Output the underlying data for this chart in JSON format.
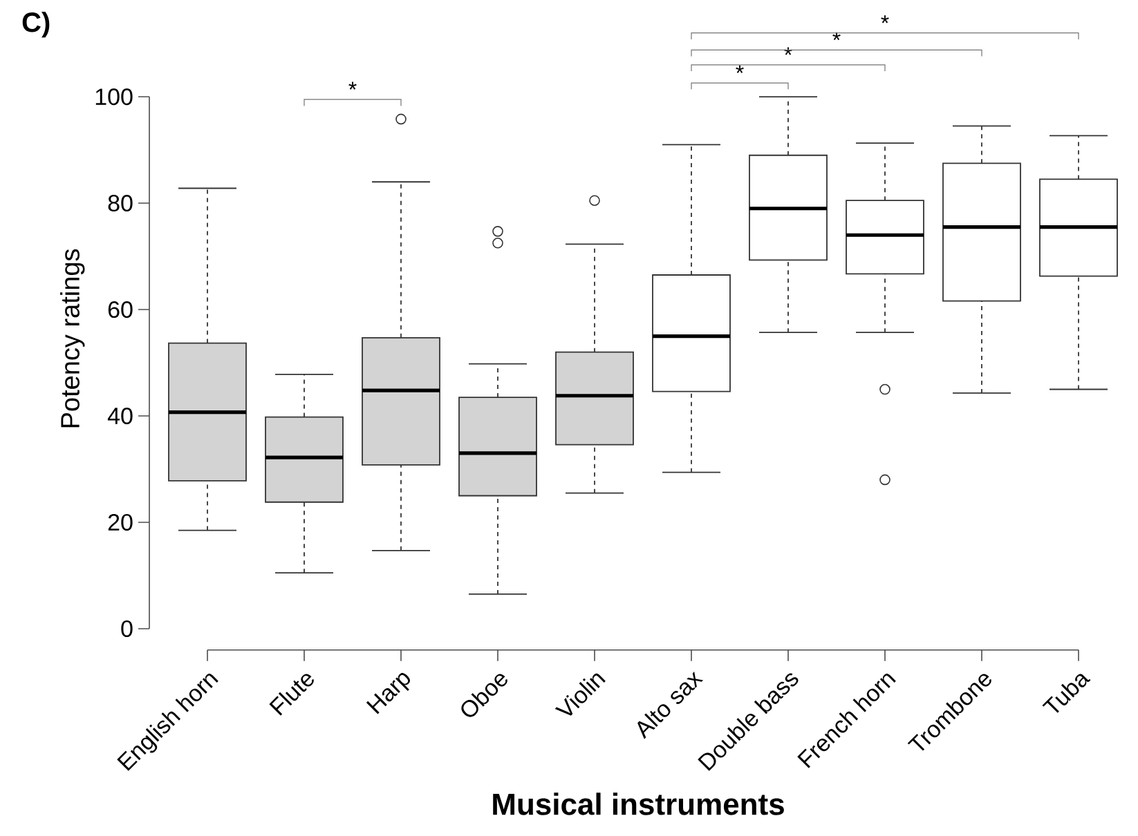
{
  "chart_data": {
    "type": "box",
    "title": "C)",
    "xlabel": "Musical instruments",
    "ylabel": "Potency ratings",
    "categories": [
      "English horn",
      "Flute",
      "Harp",
      "Oboe",
      "Violin",
      "Alto sax",
      "Double bass",
      "French horn",
      "Trombone",
      "Tuba"
    ],
    "boxes": [
      {
        "low": 18.5,
        "q1": 27.8,
        "median": 40.7,
        "q3": 53.7,
        "high": 82.8
      },
      {
        "low": 10.5,
        "q1": 23.8,
        "median": 32.2,
        "q3": 39.8,
        "high": 47.8
      },
      {
        "low": 14.7,
        "q1": 30.8,
        "median": 44.8,
        "q3": 54.7,
        "high": 84,
        "outliers": [
          95.8
        ]
      },
      {
        "low": 6.5,
        "q1": 25,
        "median": 33,
        "q3": 43.5,
        "high": 49.8,
        "outliers": [
          72.5,
          74.7
        ]
      },
      {
        "low": 25.5,
        "q1": 34.6,
        "median": 43.8,
        "q3": 52,
        "high": 72.3,
        "outliers": [
          80.5
        ]
      },
      {
        "low": 29.4,
        "q1": 44.6,
        "median": 55,
        "q3": 66.5,
        "high": 91
      },
      {
        "low": 55.7,
        "q1": 69.3,
        "median": 79,
        "q3": 89,
        "high": 100
      },
      {
        "low": 55.7,
        "q1": 66.7,
        "median": 74,
        "q3": 80.5,
        "high": 91.3,
        "outliers": [
          45,
          28
        ]
      },
      {
        "low": 44.3,
        "q1": 61.6,
        "median": 75.5,
        "q3": 87.5,
        "high": 94.5
      },
      {
        "low": 45,
        "q1": 66.3,
        "median": 75.5,
        "q3": 84.5,
        "high": 92.7
      }
    ],
    "colors": [
      "#d3d3d3",
      "#d3d3d3",
      "#d3d3d3",
      "#d3d3d3",
      "#d3d3d3",
      "#ffffff",
      "#ffffff",
      "#ffffff",
      "#ffffff",
      "#ffffff"
    ],
    "ylim": [
      0,
      100
    ],
    "yticks": [
      0,
      20,
      40,
      60,
      80,
      100
    ],
    "annotations": [
      "*",
      "*",
      "*",
      "*",
      "*"
    ]
  }
}
